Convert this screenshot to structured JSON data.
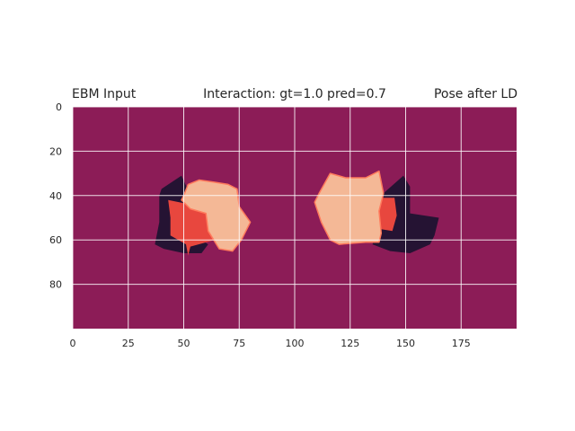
{
  "chart_data": {
    "type": "heatmap",
    "title_left": "EBM Input",
    "title_center": "Interaction: gt=1.0 pred=0.7",
    "title_right": "Pose after LD",
    "xlim": [
      0,
      200
    ],
    "ylim": [
      100,
      0
    ],
    "xticks": [
      0,
      25,
      50,
      75,
      100,
      125,
      150,
      175
    ],
    "yticks": [
      0,
      20,
      40,
      60,
      80
    ],
    "grid": true,
    "colors": {
      "background": "#8c1c57",
      "shadow": "#251333",
      "red": "#e8473e",
      "peach": "#f4b896",
      "outline": "#ff7a5c",
      "grid": "#ffffff"
    },
    "regions": [
      {
        "name": "left-shadow",
        "color_key": "shadow",
        "points": [
          [
            40,
            37
          ],
          [
            49,
            31
          ],
          [
            53,
            40
          ],
          [
            58,
            49
          ],
          [
            55,
            58
          ],
          [
            61,
            62
          ],
          [
            58,
            66
          ],
          [
            50,
            66
          ],
          [
            41,
            64
          ],
          [
            37,
            62
          ],
          [
            39,
            52
          ],
          [
            39,
            40
          ]
        ]
      },
      {
        "name": "left-red",
        "color_key": "red",
        "points": [
          [
            43,
            42
          ],
          [
            53,
            44
          ],
          [
            63,
            46
          ],
          [
            68,
            51
          ],
          [
            64,
            60
          ],
          [
            53,
            63
          ],
          [
            52,
            67
          ],
          [
            51,
            62
          ],
          [
            44,
            58
          ],
          [
            44,
            50
          ]
        ]
      },
      {
        "name": "left-peach",
        "color_key": "peach",
        "points": [
          [
            50,
            40
          ],
          [
            52,
            35
          ],
          [
            57,
            33
          ],
          [
            64,
            34
          ],
          [
            70,
            35
          ],
          [
            74,
            37
          ],
          [
            75,
            45
          ],
          [
            80,
            52
          ],
          [
            76,
            60
          ],
          [
            72,
            65
          ],
          [
            66,
            64
          ],
          [
            61,
            56
          ],
          [
            60,
            48
          ],
          [
            53,
            46
          ],
          [
            49,
            42
          ]
        ]
      },
      {
        "name": "right-shadow",
        "color_key": "shadow",
        "points": [
          [
            140,
            39
          ],
          [
            149,
            31
          ],
          [
            152,
            36
          ],
          [
            152,
            48
          ],
          [
            165,
            50
          ],
          [
            163,
            58
          ],
          [
            161,
            62
          ],
          [
            152,
            66
          ],
          [
            143,
            65
          ],
          [
            135,
            62
          ],
          [
            140,
            51
          ]
        ]
      },
      {
        "name": "right-red",
        "color_key": "red",
        "points": [
          [
            138,
            41
          ],
          [
            145,
            41
          ],
          [
            146,
            49
          ],
          [
            144,
            56
          ],
          [
            138,
            55
          ],
          [
            136,
            47
          ]
        ]
      },
      {
        "name": "right-peach",
        "color_key": "peach",
        "points": [
          [
            111,
            39
          ],
          [
            116,
            30
          ],
          [
            123,
            32
          ],
          [
            132,
            32
          ],
          [
            138,
            29
          ],
          [
            140,
            39
          ],
          [
            138,
            47
          ],
          [
            139,
            57
          ],
          [
            138,
            61
          ],
          [
            132,
            61
          ],
          [
            120,
            62
          ],
          [
            116,
            60
          ],
          [
            112,
            52
          ],
          [
            109,
            43
          ]
        ]
      }
    ]
  }
}
